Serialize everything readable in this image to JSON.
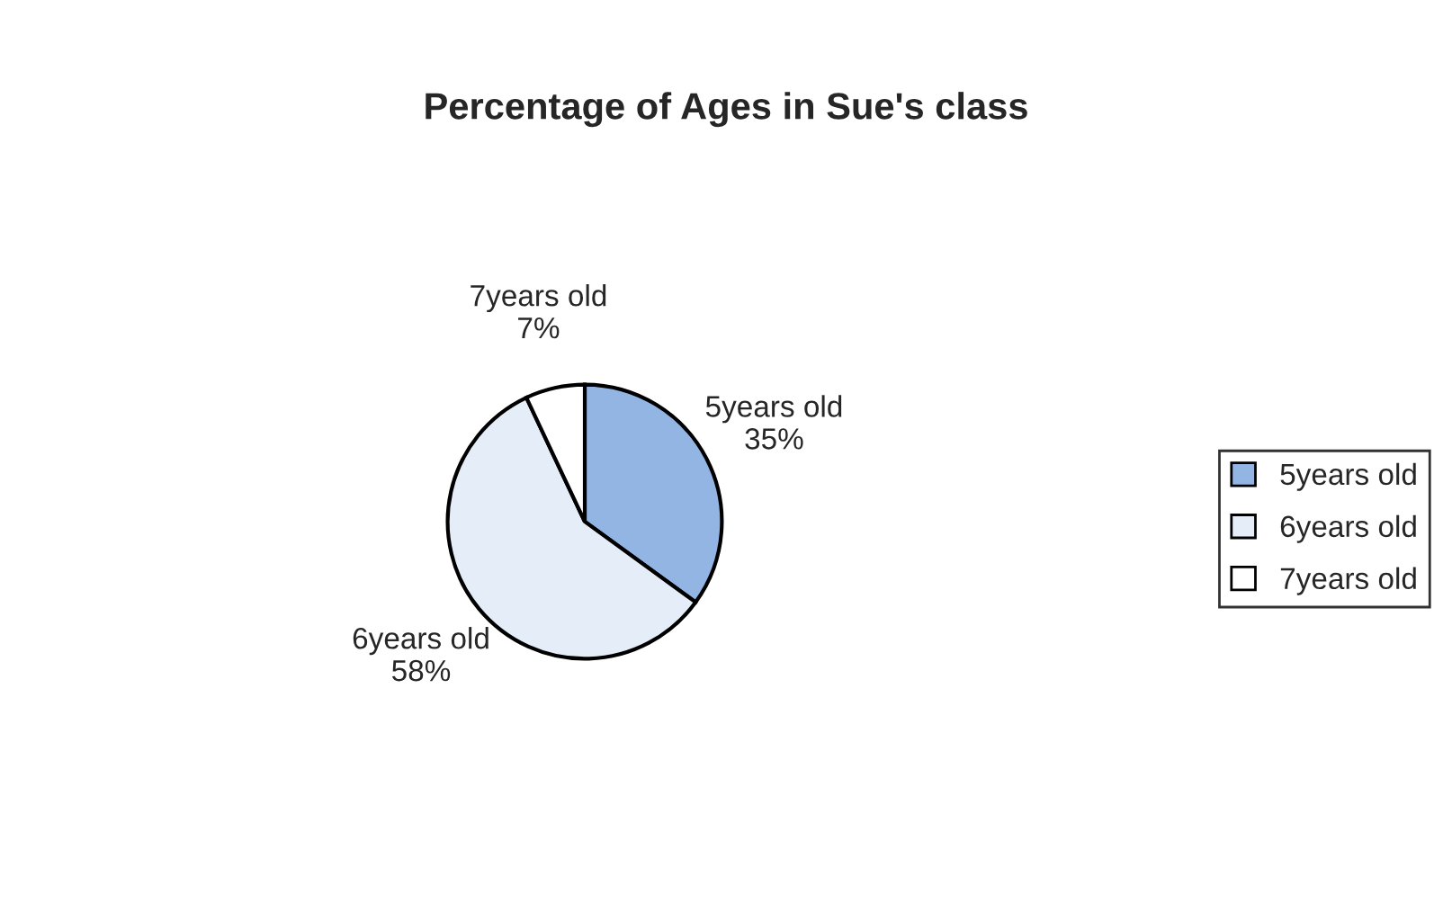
{
  "chart_data": {
    "type": "pie",
    "title": "Percentage of Ages in Sue's class",
    "categories": [
      "5years old",
      "6years old",
      "7years old"
    ],
    "values": [
      35,
      58,
      7
    ],
    "value_labels": [
      "35%",
      "58%",
      "7%"
    ],
    "colors": [
      "#93b5e3",
      "#e4edf8",
      "#ffffff"
    ],
    "legend": "right"
  }
}
